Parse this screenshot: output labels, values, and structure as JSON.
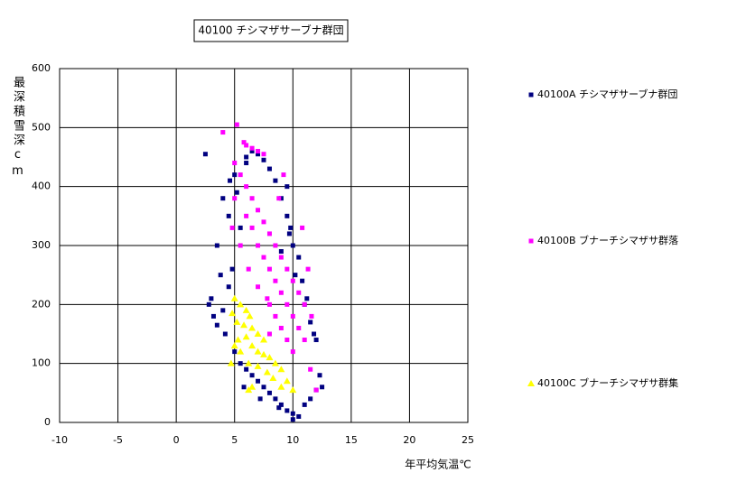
{
  "chart_data": {
    "type": "scatter",
    "title": "40100 チシマザサーブナ群団",
    "x_label": "年平均気温℃",
    "y_label": "最深積雪深cm",
    "xlim": [
      -10,
      25
    ],
    "xticks": [
      -10,
      -5,
      0,
      5,
      10,
      15,
      20,
      25
    ],
    "ylim": [
      0,
      600
    ],
    "yticks": [
      0,
      100,
      200,
      300,
      400,
      500,
      600
    ],
    "grid": true,
    "legend": "right",
    "series": [
      {
        "name": "40100A チシマザサーブナ群団",
        "color": "#000080",
        "marker": "square",
        "x": [
          2.5,
          4,
          3.5,
          3,
          2.8,
          3.2,
          4.2,
          4.5,
          5,
          5.2,
          5.5,
          4.8,
          4.5,
          5,
          5.5,
          6,
          6.5,
          7,
          7.5,
          8,
          8.5,
          9,
          9.5,
          10,
          10.5,
          11,
          11.5,
          12,
          12.3,
          12,
          11.5,
          11.2,
          10.8,
          10.5,
          10,
          9.8,
          9.5,
          9,
          8.5,
          8,
          7.5,
          7,
          6.5,
          6,
          9.7,
          9,
          10.2,
          11,
          11.8,
          12.5,
          3.8,
          4,
          3.5,
          5.8,
          7.2,
          8.8,
          10,
          6,
          4.6,
          9.5
        ],
        "values": [
          455,
          380,
          300,
          210,
          200,
          180,
          150,
          350,
          420,
          390,
          330,
          260,
          230,
          120,
          100,
          90,
          80,
          70,
          60,
          50,
          40,
          30,
          20,
          15,
          10,
          30,
          40,
          55,
          80,
          140,
          170,
          210,
          240,
          280,
          300,
          330,
          350,
          380,
          410,
          430,
          445,
          455,
          460,
          440,
          320,
          290,
          250,
          200,
          150,
          60,
          250,
          190,
          165,
          60,
          40,
          25,
          5,
          450,
          410,
          400
        ]
      },
      {
        "name": "40100B ブナーチシマザサ群落",
        "color": "#ff00ff",
        "marker": "square",
        "x": [
          5.2,
          4,
          5.8,
          6,
          6.5,
          7,
          7.5,
          5,
          5.5,
          6,
          6.5,
          7,
          7.5,
          8,
          8.5,
          9,
          9.5,
          10,
          10.5,
          11,
          6,
          6.5,
          7,
          7.5,
          8,
          8.5,
          9,
          9.5,
          10,
          10.5,
          11,
          8,
          8.5,
          9,
          9.5,
          10,
          8,
          11.5,
          12,
          5,
          4.8,
          5.5,
          6.2,
          7,
          7.8,
          9.2,
          8.8,
          10.8,
          11.3,
          11.6
        ],
        "values": [
          505,
          492,
          475,
          470,
          465,
          460,
          455,
          440,
          420,
          400,
          380,
          360,
          340,
          320,
          300,
          280,
          260,
          240,
          220,
          200,
          350,
          330,
          300,
          280,
          260,
          240,
          220,
          200,
          180,
          160,
          140,
          200,
          180,
          160,
          140,
          120,
          150,
          90,
          55,
          380,
          330,
          300,
          260,
          230,
          210,
          420,
          380,
          330,
          260,
          180
        ]
      },
      {
        "name": "40100C ブナーチシマザサ群集",
        "color": "#ffff00",
        "marker": "triangle",
        "x": [
          5,
          5.5,
          6,
          6.3,
          4.8,
          5.2,
          5.8,
          6.5,
          7,
          7.5,
          6,
          5,
          5.5,
          6.5,
          7,
          7.5,
          8,
          8.5,
          9,
          9.5,
          10,
          6.2,
          7,
          7.8,
          8.3,
          9,
          6.5,
          6.2,
          4.7,
          5.3
        ],
        "values": [
          210,
          200,
          190,
          180,
          185,
          170,
          165,
          160,
          150,
          140,
          145,
          130,
          120,
          130,
          120,
          115,
          110,
          100,
          90,
          70,
          55,
          100,
          95,
          85,
          75,
          60,
          60,
          55,
          100,
          140
        ]
      }
    ]
  }
}
